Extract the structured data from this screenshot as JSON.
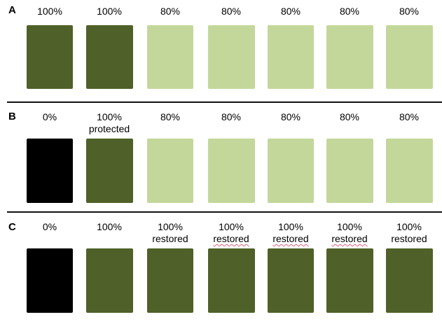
{
  "colors": {
    "full": "#4f6128",
    "partial": "#c4d79b",
    "zero": "#000000"
  },
  "panels": [
    {
      "label": "A",
      "items": [
        {
          "value": "100%",
          "note": "",
          "state": "full"
        },
        {
          "value": "100%",
          "note": "",
          "state": "full"
        },
        {
          "value": "80%",
          "note": "",
          "state": "partial"
        },
        {
          "value": "80%",
          "note": "",
          "state": "partial"
        },
        {
          "value": "80%",
          "note": "",
          "state": "partial"
        },
        {
          "value": "80%",
          "note": "",
          "state": "partial"
        },
        {
          "value": "80%",
          "note": "",
          "state": "partial"
        }
      ]
    },
    {
      "label": "B",
      "items": [
        {
          "value": "0%",
          "note": "",
          "state": "zero"
        },
        {
          "value": "100%",
          "note": "protected",
          "state": "full"
        },
        {
          "value": "80%",
          "note": "",
          "state": "partial"
        },
        {
          "value": "80%",
          "note": "",
          "state": "partial"
        },
        {
          "value": "80%",
          "note": "",
          "state": "partial"
        },
        {
          "value": "80%",
          "note": "",
          "state": "partial"
        },
        {
          "value": "80%",
          "note": "",
          "state": "partial"
        }
      ]
    },
    {
      "label": "C",
      "items": [
        {
          "value": "0%",
          "note": "",
          "state": "zero"
        },
        {
          "value": "100%",
          "note": "",
          "state": "full"
        },
        {
          "value": "100%",
          "note": "restored",
          "state": "full"
        },
        {
          "value": "100%",
          "note": "restored",
          "state": "full",
          "squiggle": true
        },
        {
          "value": "100%",
          "note": "restored",
          "state": "full",
          "squiggle": true
        },
        {
          "value": "100%",
          "note": "restored",
          "state": "full",
          "squiggle": true
        },
        {
          "value": "100%",
          "note": "restored",
          "state": "full"
        }
      ]
    }
  ]
}
